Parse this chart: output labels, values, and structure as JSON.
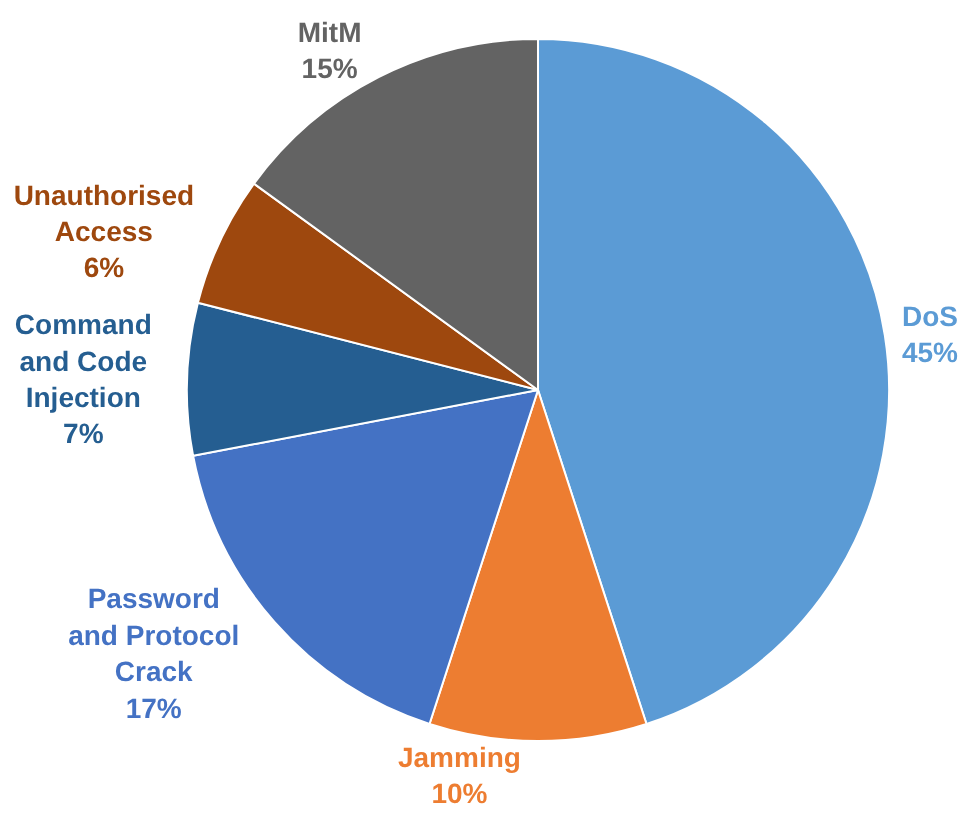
{
  "chart_data": {
    "type": "pie",
    "categories": [
      "DoS",
      "Jamming",
      "Password\nand Protocol\nCrack",
      "Command\nand Code\nInjection",
      "Unauthorised\nAccess",
      "MitM"
    ],
    "values": [
      45,
      10,
      17,
      7,
      6,
      15
    ],
    "colors": [
      "#5b9bd5",
      "#ed7d31",
      "#4472c4",
      "#255e91",
      "#9e480e",
      "#636363"
    ],
    "value_labels": [
      "45%",
      "10%",
      "17%",
      "7%",
      "6%",
      "15%"
    ],
    "legend": false
  }
}
